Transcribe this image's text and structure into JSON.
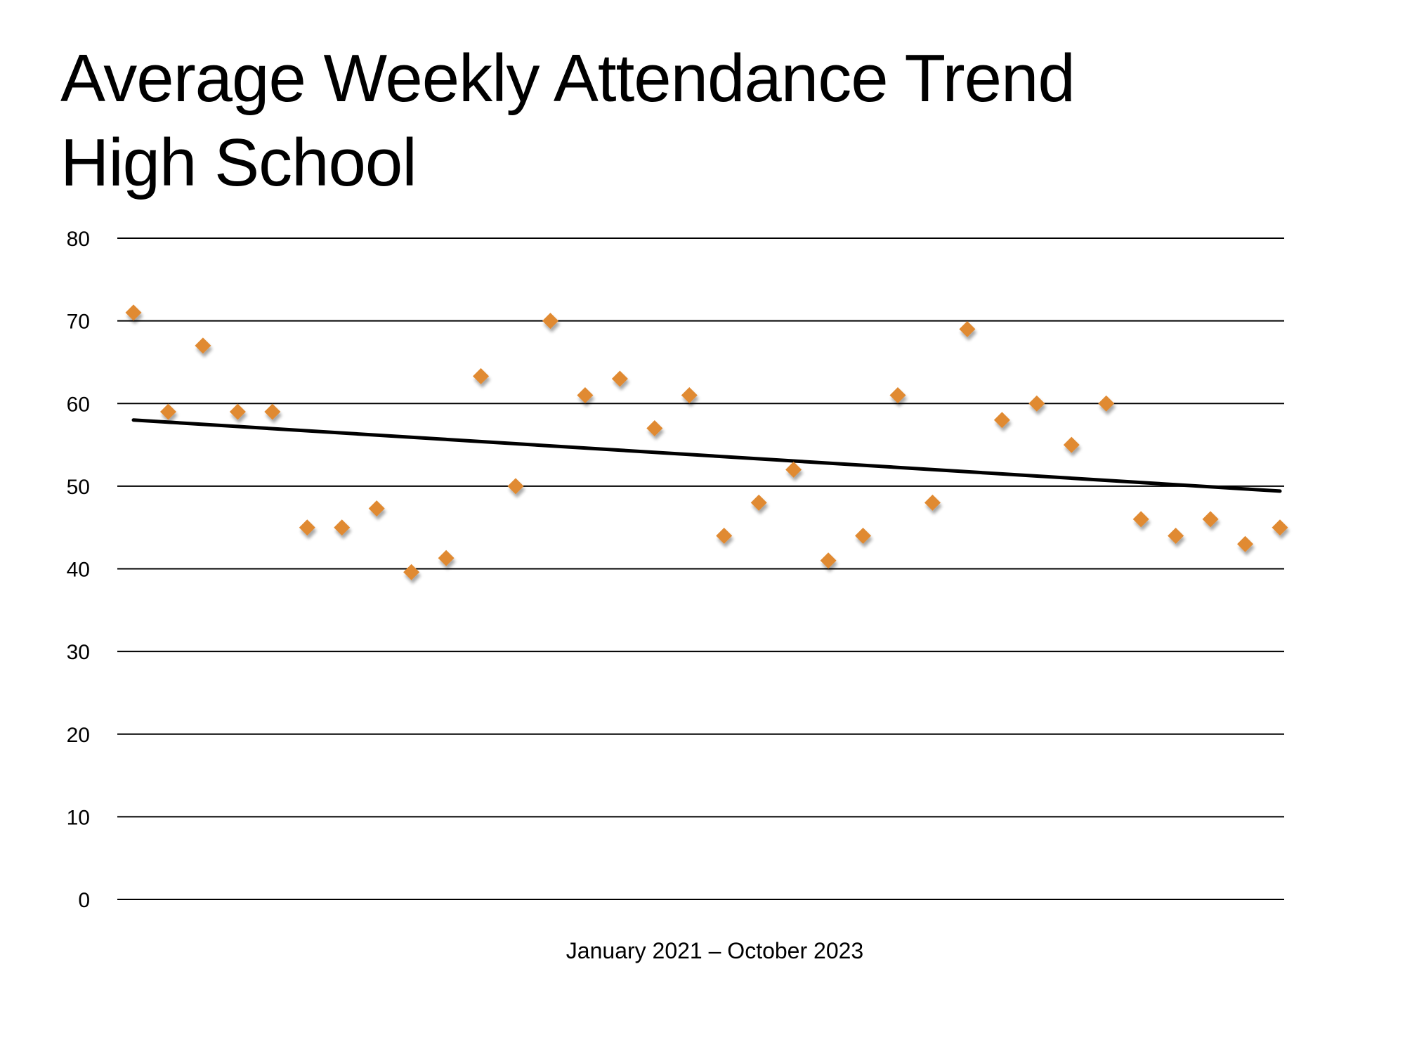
{
  "slide": {
    "title_line1": "Average Weekly Attendance Trend",
    "title_line2": "High School"
  },
  "chart_data": {
    "type": "scatter",
    "title": "Average Weekly Attendance Trend High School",
    "xlabel": "January 2021 – October 2023",
    "ylabel": "",
    "ylim": [
      0,
      80
    ],
    "yticks": [
      0,
      10,
      20,
      30,
      40,
      50,
      60,
      70,
      80
    ],
    "ytick_labels": [
      "0",
      "10",
      "20",
      "30",
      "40",
      "50",
      "60",
      "70",
      "80"
    ],
    "grid": true,
    "legend": "none",
    "series": [
      {
        "name": "Average Weekly Attendance",
        "marker": "diamond",
        "color": "#E08A33",
        "x": [
          1,
          2,
          3,
          4,
          5,
          6,
          7,
          8,
          9,
          10,
          11,
          12,
          13,
          14,
          15,
          16,
          17,
          18,
          19,
          20,
          21,
          22,
          23,
          24,
          25,
          26,
          27,
          28,
          29,
          30,
          31,
          32,
          33,
          34
        ],
        "values": [
          71,
          59,
          67,
          59,
          59,
          45,
          45,
          47.3,
          39.6,
          41.3,
          63.3,
          50,
          70,
          61,
          63,
          57,
          61,
          44,
          48,
          52,
          41,
          44,
          61,
          48,
          69,
          58,
          60,
          55,
          60,
          46,
          44,
          46,
          43,
          45
        ]
      }
    ],
    "trendline": {
      "type": "linear",
      "color": "#000000",
      "start": {
        "x": 1,
        "y": 58.0
      },
      "end": {
        "x": 34,
        "y": 49.4
      }
    }
  }
}
